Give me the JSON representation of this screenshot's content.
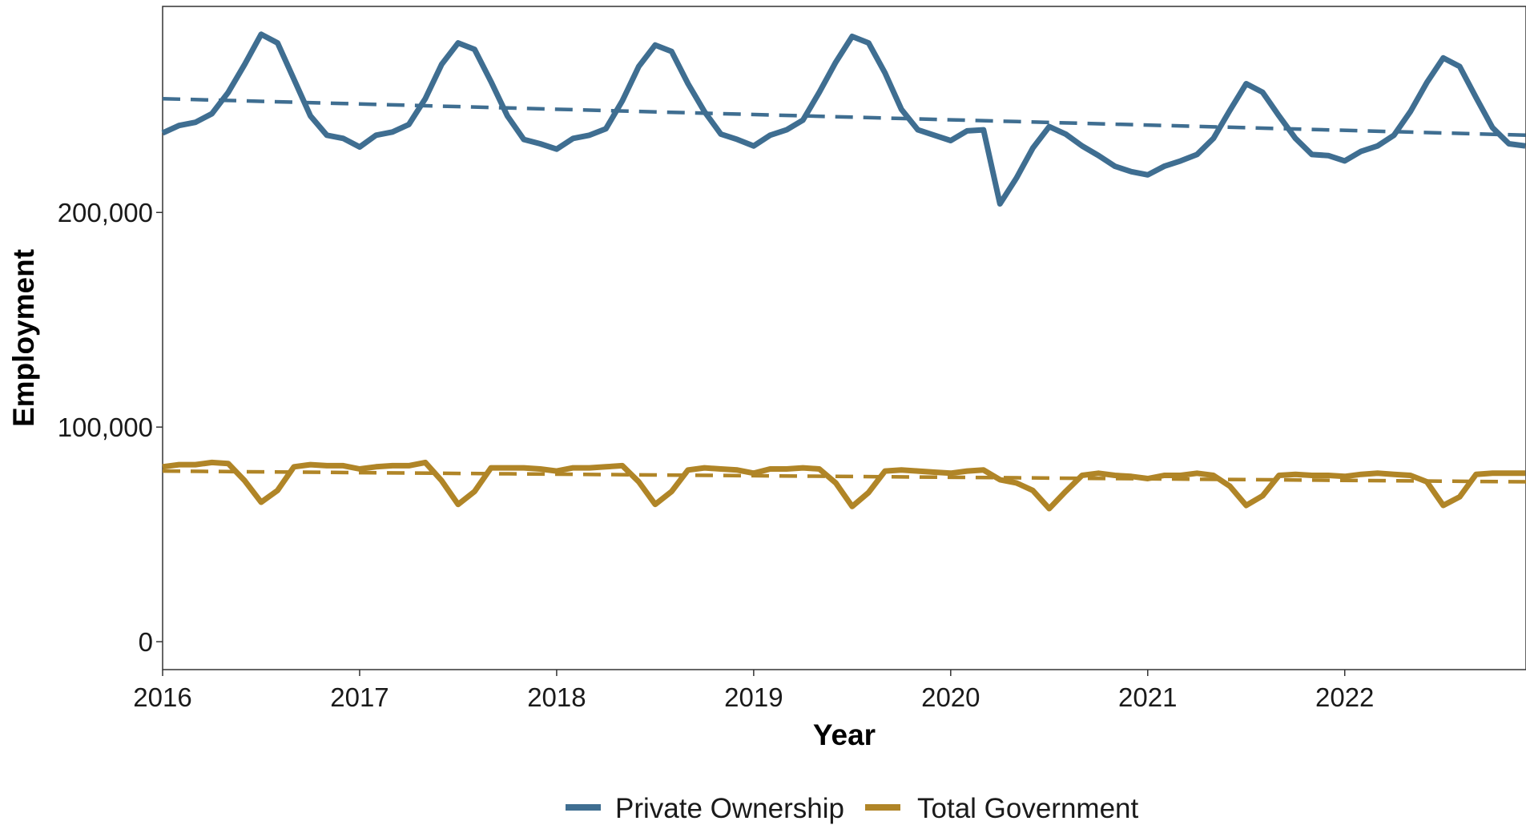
{
  "chart_data": {
    "type": "line",
    "title": "",
    "xlabel": "Year",
    "ylabel": "Employment",
    "xlim": [
      2016,
      2022.92
    ],
    "ylim": [
      -13000,
      296000
    ],
    "x_ticks": [
      2016,
      2017,
      2018,
      2019,
      2020,
      2021,
      2022
    ],
    "x_tick_labels": [
      "2016",
      "2017",
      "2018",
      "2019",
      "2020",
      "2021",
      "2022"
    ],
    "y_ticks": [
      0,
      100000,
      200000
    ],
    "y_tick_labels": [
      "0",
      "100,000",
      "200,000"
    ],
    "grid": false,
    "legend_position": "bottom",
    "x_interval_months": 1,
    "x_start": 2016,
    "series": [
      {
        "name": "Private Ownership",
        "color": "#3F6E91",
        "values": [
          237000,
          240500,
          242000,
          246000,
          256000,
          269000,
          283000,
          279000,
          262000,
          245000,
          236000,
          234500,
          230500,
          236000,
          237500,
          241000,
          253000,
          269000,
          279000,
          276000,
          261000,
          245000,
          234000,
          232000,
          229500,
          234500,
          236000,
          239000,
          252000,
          268000,
          278000,
          275000,
          260000,
          247000,
          236500,
          234000,
          231000,
          236000,
          238500,
          243000,
          256000,
          270000,
          282000,
          279000,
          265000,
          248000,
          238500,
          236000,
          233500,
          238000,
          238500,
          204000,
          216000,
          230000,
          240000,
          236500,
          231000,
          226500,
          221500,
          219000,
          217500,
          221500,
          224000,
          227000,
          234500,
          247500,
          260000,
          256000,
          245000,
          234500,
          227000,
          226500,
          224000,
          228500,
          231000,
          236000,
          247000,
          260500,
          272000,
          268000,
          253500,
          239500,
          232000,
          231000
        ]
      },
      {
        "name": "Total Government",
        "color": "#B08527",
        "values": [
          81500,
          82500,
          82500,
          83500,
          83000,
          75000,
          65000,
          70500,
          81500,
          82500,
          82000,
          82000,
          80500,
          81500,
          82000,
          82000,
          83500,
          75000,
          64000,
          70000,
          81000,
          81000,
          81000,
          80500,
          79500,
          81000,
          81000,
          81500,
          82000,
          74500,
          64000,
          70000,
          80000,
          81000,
          80500,
          80000,
          78500,
          80500,
          80500,
          81000,
          80500,
          74000,
          63000,
          69500,
          79500,
          80000,
          79500,
          79000,
          78500,
          79500,
          80000,
          75500,
          74000,
          70500,
          62000,
          70000,
          77500,
          78500,
          77500,
          77000,
          76000,
          77500,
          77500,
          78500,
          77500,
          72500,
          63500,
          68000,
          77500,
          78000,
          77500,
          77500,
          77000,
          78000,
          78500,
          78000,
          77500,
          74500,
          63500,
          67500,
          78000,
          78500,
          78500,
          78500
        ]
      }
    ],
    "trend_lines": [
      {
        "series": "Private Ownership",
        "color": "#3F6E91",
        "x": [
          2016,
          2022.92
        ],
        "y": [
          253000,
          236000
        ]
      },
      {
        "series": "Total Government",
        "color": "#B08527",
        "x": [
          2016,
          2022.92
        ],
        "y": [
          79500,
          74500
        ]
      }
    ]
  },
  "legend": {
    "items": [
      {
        "label": "Private Ownership",
        "color": "#3F6E91"
      },
      {
        "label": "Total Government",
        "color": "#B08527"
      }
    ]
  }
}
